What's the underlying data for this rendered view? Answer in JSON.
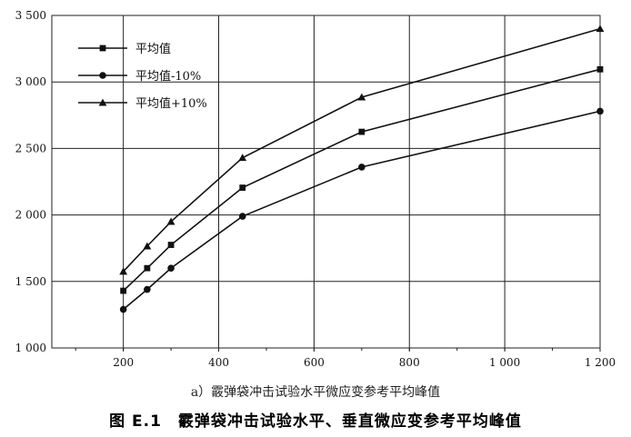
{
  "figure": {
    "subcaption": "a）霰弹袋冲击试验水平微应变参考平均峰值",
    "caption": "图 E.1　霰弹袋冲击试验水平、垂直微应变参考平均峰值"
  },
  "chart_data": {
    "type": "line",
    "x": [
      200,
      250,
      300,
      450,
      700,
      1200
    ],
    "series": [
      {
        "name": "平均值",
        "marker": "square",
        "values": [
          1430,
          1600,
          1775,
          2205,
          2625,
          3095
        ]
      },
      {
        "name": "平均值-10%",
        "marker": "circle",
        "values": [
          1290,
          1440,
          1600,
          1990,
          2360,
          2780
        ]
      },
      {
        "name": "平均值+10%",
        "marker": "triangle",
        "values": [
          1575,
          1765,
          1950,
          2430,
          2885,
          3400
        ]
      }
    ],
    "xlim": [
      50,
      1200
    ],
    "ylim": [
      1000,
      3500
    ],
    "xticks": [
      200,
      400,
      600,
      800,
      1000,
      1200
    ],
    "xtick_labels": [
      "200",
      "400",
      "600",
      "800",
      "1 000",
      "1 200"
    ],
    "yticks": [
      1000,
      1500,
      2000,
      2500,
      3000,
      3500
    ],
    "ytick_labels": [
      "1 000",
      "1 500",
      "2 000",
      "2 500",
      "3 000",
      "3 500"
    ],
    "grid": true,
    "legend": "top-left",
    "colors": {
      "line": "#111111",
      "grid": "#222222"
    },
    "title": "",
    "xlabel": "",
    "ylabel": ""
  }
}
